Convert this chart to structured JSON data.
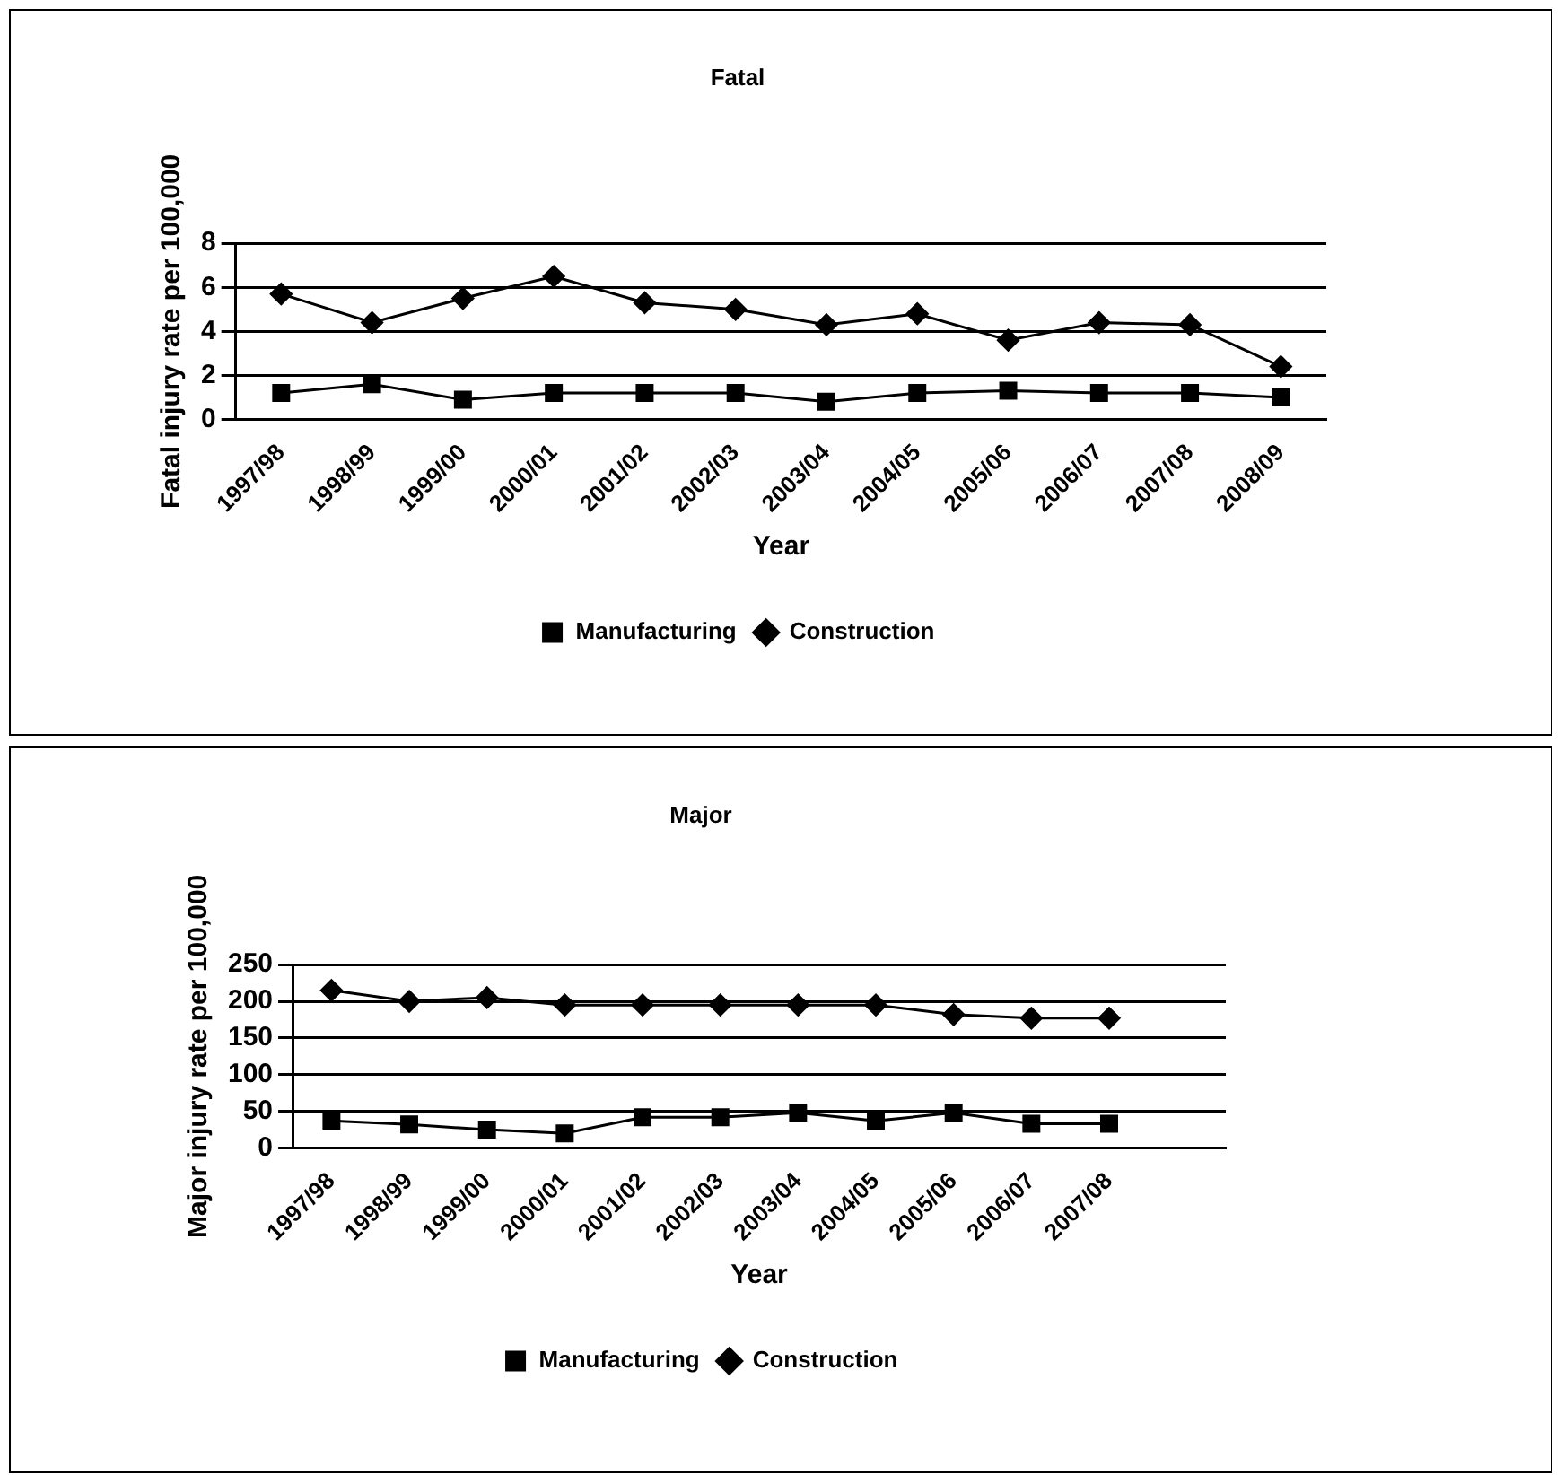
{
  "chart_data": [
    {
      "type": "line",
      "title": "Fatal",
      "xlabel": "Year",
      "ylabel": "Fatal injury rate per 100,000",
      "categories": [
        "1997/98",
        "1998/99",
        "1999/00",
        "2000/01",
        "2001/02",
        "2002/03",
        "2003/04",
        "2004/05",
        "2005/06",
        "2006/07",
        "2007/08",
        "2008/09"
      ],
      "series": [
        {
          "name": "Manufacturing",
          "color": "#000000",
          "marker": "square",
          "values": [
            1.2,
            1.6,
            0.9,
            1.2,
            1.2,
            1.2,
            0.8,
            1.2,
            1.3,
            1.2,
            1.2,
            1.0
          ]
        },
        {
          "name": "Construction",
          "color": "#000000",
          "marker": "diamond",
          "values": [
            5.7,
            4.4,
            5.5,
            6.5,
            5.3,
            5.0,
            4.3,
            4.8,
            3.6,
            4.4,
            4.3,
            2.4
          ]
        }
      ],
      "ylim": [
        0,
        8
      ],
      "yticks": [
        0,
        2,
        4,
        6,
        8
      ],
      "grid": "y",
      "legend": "bottom"
    },
    {
      "type": "line",
      "title": "Major",
      "xlabel": "Year",
      "ylabel": "Major injury rate per 100,000",
      "categories": [
        "1997/98",
        "1998/99",
        "1999/00",
        "2000/01",
        "2001/02",
        "2002/03",
        "2003/04",
        "2004/05",
        "2005/06",
        "2006/07",
        "2007/08",
        null
      ],
      "series": [
        {
          "name": "Manufacturing",
          "color": "#000000",
          "marker": "square",
          "values": [
            37,
            32,
            25,
            20,
            42,
            42,
            48,
            37,
            48,
            33,
            33,
            null
          ]
        },
        {
          "name": "Construction",
          "color": "#000000",
          "marker": "diamond",
          "values": [
            215,
            200,
            205,
            195,
            195,
            195,
            195,
            195,
            182,
            177,
            177,
            null
          ]
        }
      ],
      "ylim": [
        0,
        250
      ],
      "yticks": [
        0,
        50,
        100,
        150,
        200,
        250
      ],
      "grid": "y",
      "legend": "bottom"
    }
  ]
}
